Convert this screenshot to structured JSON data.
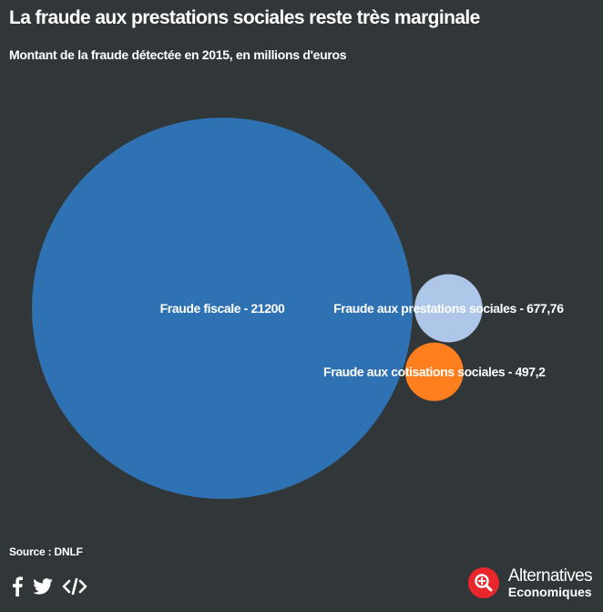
{
  "title": "La fraude aux prestations sociales reste très marginale",
  "subtitle": "Montant de la fraude détectée en 2015, en millions d'euros",
  "source": "Source : DNLF",
  "brand": {
    "line1": "Alternatives",
    "line2": "Economiques",
    "logo_color": "#e8262b"
  },
  "social": [
    "facebook-icon",
    "twitter-icon",
    "embed-icon"
  ],
  "chart_data": {
    "type": "bubble",
    "series": [
      {
        "name": "Fraude fiscale",
        "value": 21200,
        "label": "Fraude fiscale - 21200",
        "color": "#2f72b3"
      },
      {
        "name": "Fraude aux prestations sociales",
        "value": 677.76,
        "label": "Fraude aux prestations sociales - 677,76",
        "color": "#aec7e8"
      },
      {
        "name": "Fraude aux cotisations sociales",
        "value": 497.2,
        "label": "Fraude aux cotisations sociales - 497,2",
        "color": "#ff7f1e"
      }
    ]
  }
}
